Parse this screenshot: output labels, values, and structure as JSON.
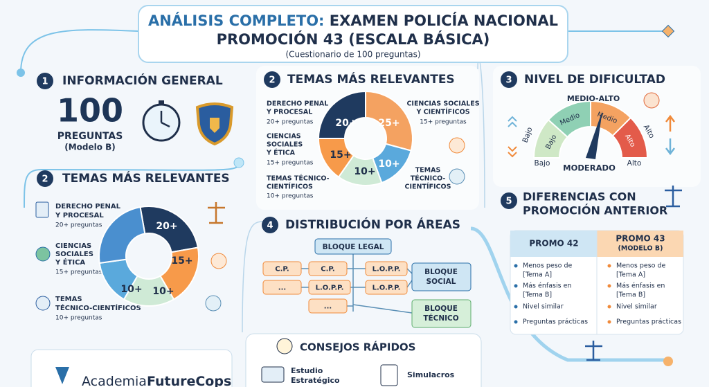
{
  "header": {
    "title_highlight": "ANÁLISIS COMPLETO:",
    "title_rest": "EXAMEN POLICÍA NACIONAL",
    "title_line2": "PROMOCIÓN 43 (ESCALA BÁSICA)",
    "subtitle": "(Cuestionario de 100 preguntas)"
  },
  "general": {
    "number": "1",
    "heading": "INFORMACIÓN GENERAL",
    "count": "100",
    "count_label": "PREGUNTAS",
    "model": "(Modelo B)"
  },
  "topics_top": {
    "number": "2",
    "heading": "TEMAS MÁS RELEVANTES",
    "left": [
      {
        "lines": [
          "DERECHO PENAL",
          "Y PROCESAL"
        ],
        "count": "20+ preguntas"
      },
      {
        "lines": [
          "CIENCIAS",
          "SOCIALES",
          "Y ÉTICA"
        ],
        "count": "15+ preguntas"
      },
      {
        "lines": [
          "TEMAS TÉCNICO-",
          "CIENTÍFICOS"
        ],
        "count": "10+ preguntas"
      }
    ],
    "right": [
      {
        "lines": [
          "CIENCIAS SOCIALES",
          "Y CIENTÍFICOS"
        ],
        "count": "15+ preguntas"
      },
      {
        "lines": [
          "TEMAS",
          "TÉCNICO-",
          "CIENTÍFICOS"
        ]
      }
    ],
    "donut_labels": [
      "20+",
      "25+",
      "10+",
      "10+",
      "15+"
    ]
  },
  "difficulty": {
    "number": "3",
    "heading": "NIVEL DE DIFICULTAD",
    "peak": "MEDIO-ALTO",
    "segments": [
      "Bajo",
      "Medio",
      "Medio",
      "Alto"
    ],
    "outer_left": "Bajo",
    "outer_right": "Alto",
    "bottom_left": "Bajo",
    "result": "MODERADO",
    "bottom_right": "Alto"
  },
  "topics_bottom": {
    "number": "2",
    "heading": "TEMAS MÁS RELEVANTES",
    "items": [
      {
        "lines": [
          "DERECHO PENAL",
          "Y PROCESAL"
        ],
        "count": "20+ preguntas"
      },
      {
        "lines": [
          "CIENCIAS",
          "SOCIALES",
          "Y ÉTICA"
        ],
        "count": "15+ preguntas"
      },
      {
        "lines": [
          "TEMAS",
          "TÉCNICO-CIENTÍFICOS"
        ],
        "count": "10+ preguntas"
      }
    ],
    "donut_labels": [
      "20+",
      "15+",
      "10+",
      "10+"
    ]
  },
  "distribution": {
    "number": "4",
    "heading": "DISTRIBUCIÓN POR ÁREAS",
    "legal": "BLOQUE LEGAL",
    "boxes": [
      "C.P.",
      "C.P.",
      "L.O.P.P.",
      "...",
      "L.O.P.P.",
      "L.O.P.P.",
      "..."
    ],
    "social": [
      "BLOQUE",
      "SOCIAL"
    ],
    "technical": [
      "BLOQUE",
      "TÉCNICO"
    ]
  },
  "differences": {
    "number": "5",
    "heading": [
      "DIFERENCIAS CON",
      "PROMOCIÓN ANTERIOR"
    ],
    "left_header": "PROMO 42",
    "right_header": [
      "PROMO 43",
      "(MODELO B)"
    ],
    "left_rows": [
      [
        "Menos peso de",
        "[Tema A]"
      ],
      [
        "Más énfasis en",
        "[Tema B]"
      ],
      [
        "Nivel similar"
      ],
      [
        "Preguntas prácticas"
      ]
    ],
    "right_rows": [
      [
        "Menos peso de",
        "[Tema A]"
      ],
      [
        "Más énfasis en",
        "[Tema B]"
      ],
      [
        "Nivel similar"
      ],
      [
        "Preguntas prácticas"
      ]
    ]
  },
  "tips": {
    "heading": "CONSEJOS RÁPIDOS",
    "study": [
      "Estudio",
      "Estratégico"
    ],
    "drills": "Simulacros"
  },
  "footer": {
    "brand_prefix": "Academia",
    "brand_suffix": "FutureCops"
  }
}
